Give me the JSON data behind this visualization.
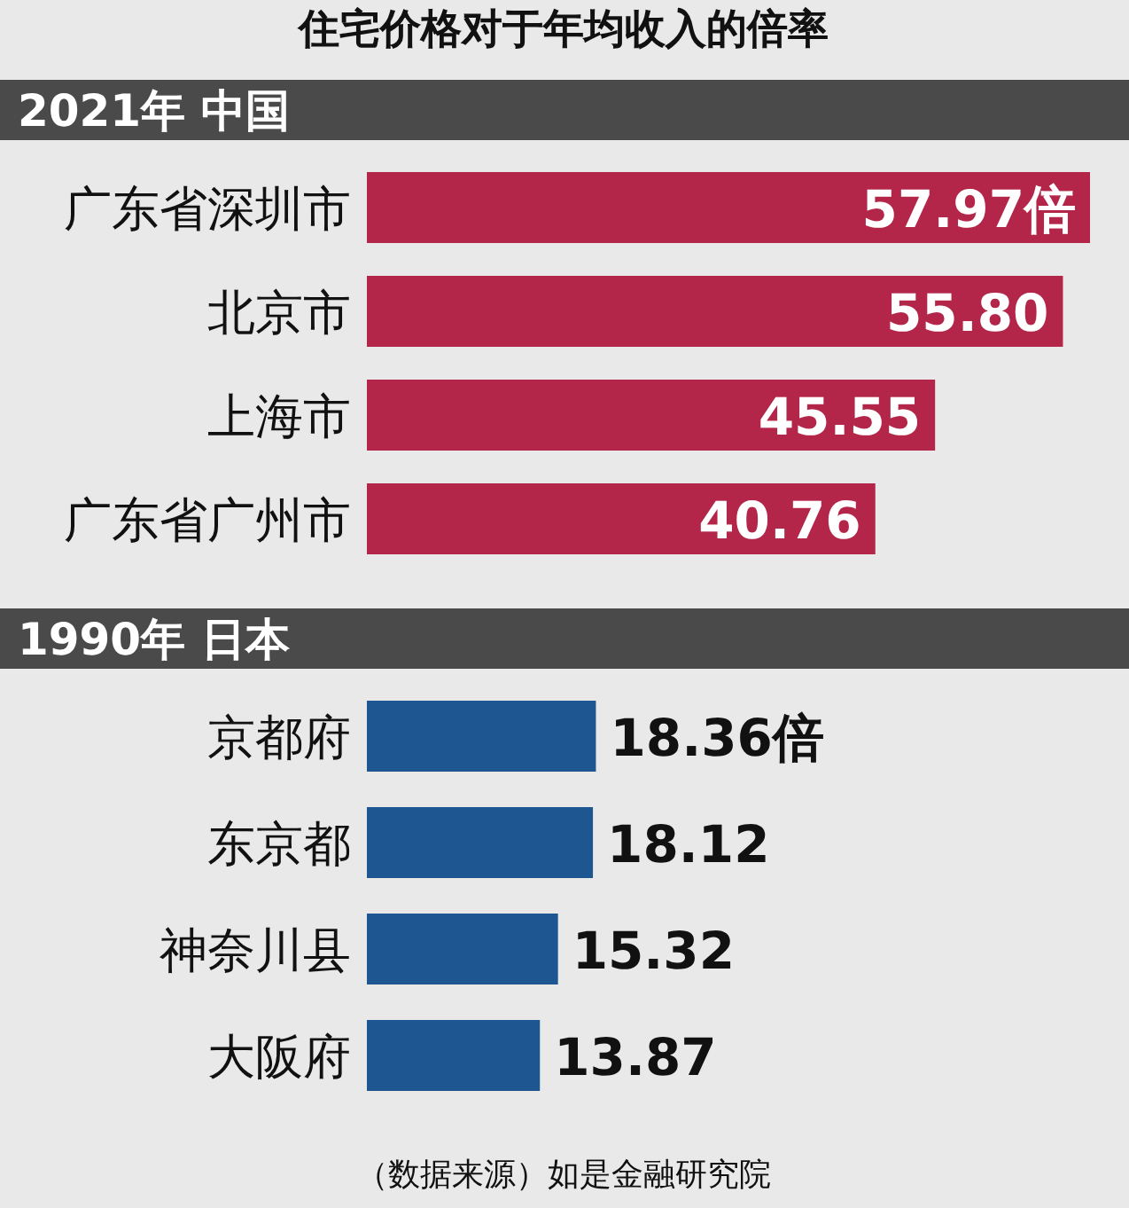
{
  "chart_data": [
    {
      "type": "bar",
      "orientation": "horizontal",
      "title": "住宅价格对于年均收入的倍率",
      "subtitle": "2021年 中国",
      "categories": [
        "广东省深圳市",
        "北京市",
        "上海市",
        "广东省广州市"
      ],
      "color": "#b3264a",
      "values": [
        57.97,
        55.8,
        45.55,
        40.76
      ],
      "value_labels": [
        "57.97倍",
        "55.80",
        "45.55",
        "40.76"
      ]
    },
    {
      "type": "bar",
      "orientation": "horizontal",
      "subtitle": "1990年 日本",
      "categories": [
        "京都府",
        "东京都",
        "神奈川县",
        "大阪府"
      ],
      "color": "#1d5690",
      "values": [
        18.36,
        18.12,
        15.32,
        13.87
      ],
      "value_labels": [
        "18.36倍",
        "18.12",
        "15.32",
        "13.87"
      ],
      "annotations": [
        "（数据来源）如是金融研究院"
      ]
    }
  ]
}
